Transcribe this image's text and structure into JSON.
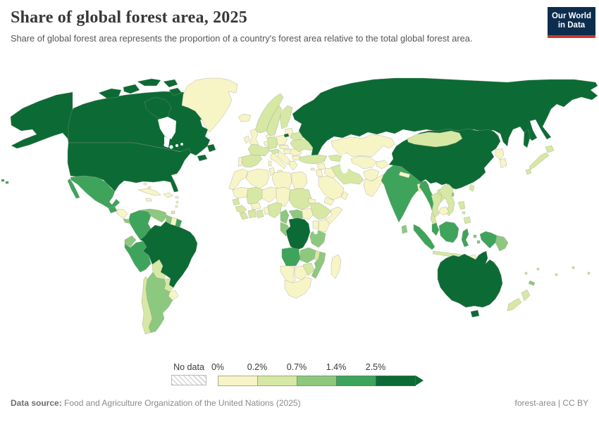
{
  "header": {
    "title": "Share of global forest area, 2025",
    "subtitle": "Share of global forest area represents the proportion of a country's forest area relative to the total global forest area."
  },
  "logo": {
    "line1": "Our World",
    "line2": "in Data",
    "bg": "#0c2d4e",
    "accent": "#cb362c"
  },
  "legend": {
    "no_data_label": "No data",
    "tick_labels": [
      "0%",
      "0.2%",
      "0.7%",
      "1.4%",
      "2.5%"
    ],
    "bin_colors": [
      "#f7f4c6",
      "#d6e8a3",
      "#8dc87f",
      "#3fa45b",
      "#0c6b35"
    ]
  },
  "footer": {
    "source_label": "Data source:",
    "source_text": " Food and Agriculture Organization of the United Nations (2025)",
    "right_text": "forest-area | CC BY"
  },
  "chart_data": {
    "type": "choropleth",
    "title": "Share of global forest area, 2025",
    "unit": "% of global forest area",
    "bins": [
      "0-0.2%",
      "0.2-0.7%",
      "0.7-1.4%",
      "1.4-2.5%",
      "2.5%+"
    ],
    "legend_position": "bottom"
  },
  "map": {
    "countries": {
      "russia": 5,
      "canada": 5,
      "usa": 5,
      "alaska": 5,
      "brazil": 5,
      "china": 5,
      "australia": 5,
      "tasmania": 5,
      "drc": 5,
      "sakhalin": 5,
      "kaliningrad": 5,
      "arctic-islands": 5,
      "vancouver-island": 5,
      "nova-scotia": 5,
      "newfoundland": 5,
      "french-guiana": 4,
      "mexico": 4,
      "baja": 4,
      "guatemala": 4,
      "colombia": 4,
      "peru": 4,
      "india": 4,
      "myanmar": 4,
      "malay-peninsula": 4,
      "sumatra": 4,
      "borneo": 4,
      "sulawesi": 4,
      "west-new-guinea": 4,
      "angola": 4,
      "hawaii-dots": 4,
      "venezuela": 3,
      "guyana": 3,
      "ecuador": 3,
      "argentina": 3,
      "car": 3,
      "cameroon": 3,
      "gabon-congo": 3,
      "tanzania": 3,
      "zambia": 3,
      "mozambique": 3,
      "sri-lanka": 3,
      "png": 3,
      "moluccas": 3,
      "costa-rica-panama": 3,
      "hainan": 3,
      "new-caledonia": 3,
      "chile": 2,
      "bolivia": 2,
      "paraguay": 2,
      "mali": 2,
      "sudan": 2,
      "senegal": 2,
      "guinea": 2,
      "sierra-leone-liberia": 2,
      "cote-divoire": 2,
      "ghana": 2,
      "nigeria": 2,
      "ethiopia": 2,
      "malawi": 2,
      "zimbabwe": 2,
      "norway": 2,
      "sweden": 2,
      "finland": 2,
      "france": 2,
      "spain": 2,
      "germany": 2,
      "austria": 2,
      "belarus": 2,
      "ukraine": 2,
      "turkey": 2,
      "caucasus": 2,
      "iran": 2,
      "mongolia": 2,
      "japan-hokkaido": 2,
      "japan-honshu": 2,
      "japan-kyushu": 2,
      "thailand": 2,
      "thailand-strip": 2,
      "laos": 2,
      "vietnam": 2,
      "philippines-luzon": 2,
      "philippines-mindanao": 2,
      "java": 2,
      "lesser-sunda": 2,
      "new-zealand-north": 2,
      "new-zealand-south": 2,
      "pacific-islands": 2,
      "taiwan": 2,
      "greenland": 1,
      "uruguay": 1,
      "suriname": 1,
      "cuba": 1,
      "hispaniola": 1,
      "jamaica": 1,
      "bahamas": 1,
      "antilles": 1,
      "honduras-nicaragua": 1,
      "iceland": 1,
      "uk": 1,
      "ireland": 1,
      "portugal": 1,
      "italy": 1,
      "sicily": 1,
      "sardinia": 1,
      "denmark": 1,
      "poland": 1,
      "czech-slovakia": 1,
      "hungary": 1,
      "balkans": 1,
      "romania": 1,
      "bulgaria": 1,
      "greece": 1,
      "crete": 1,
      "baltics": 1,
      "benelux": 1,
      "morocco": 1,
      "algeria": 1,
      "tunisia": 1,
      "libya": 1,
      "egypt": 1,
      "mauritania": 1,
      "niger": 1,
      "chad": 1,
      "burkina": 1,
      "togo-benin": 1,
      "eritrea": 1,
      "south-sudan": 1,
      "somalia": 1,
      "kenya": 1,
      "uganda": 1,
      "rwanda-burundi": 1,
      "botswana": 1,
      "namibia": 1,
      "south-africa": 1,
      "madagascar": 1,
      "saudi-arabia": 1,
      "yemen": 1,
      "oman": 1,
      "iraq": 1,
      "syria": 1,
      "levant": 1,
      "kazakhstan": 1,
      "central-asia": 1,
      "kyrgyz-tajik": 1,
      "afghanistan": 1,
      "pakistan": 1,
      "nepal": 1,
      "bangladesh": 1,
      "north-korea": 1,
      "south-korea": 1,
      "cambodia": 1,
      "timor": 1,
      "cyprus": 1,
      "trinidad": 2
    }
  }
}
